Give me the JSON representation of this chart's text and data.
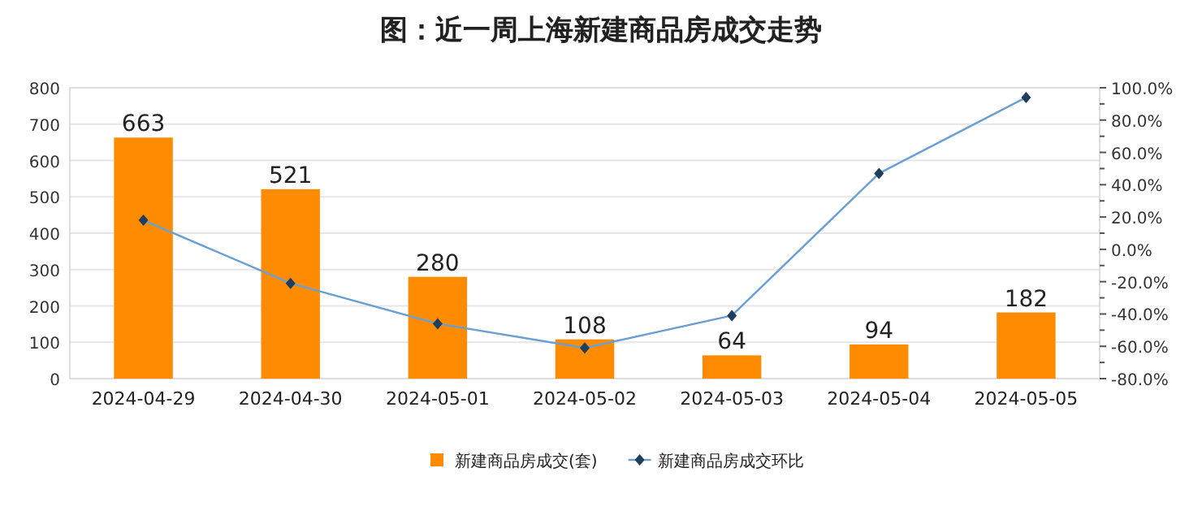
{
  "chart_data": {
    "type": "bar",
    "title": "图：近一周上海新建商品房成交走势",
    "categories": [
      "2024-04-29",
      "2024-04-30",
      "2024-05-01",
      "2024-05-02",
      "2024-05-03",
      "2024-05-04",
      "2024-05-05"
    ],
    "series": [
      {
        "name": "新建商品房成交(套)",
        "color": "#ff8c00",
        "values": [
          663,
          521,
          280,
          108,
          64,
          94,
          182
        ],
        "value_labels": [
          "663",
          "521",
          "280",
          "108",
          "64",
          "94",
          "182"
        ]
      },
      {
        "name": "新建商品房成交环比",
        "type": "line",
        "axis": "y2",
        "color": "#6a9fd4",
        "marker": "diamond",
        "values": [
          18,
          -21,
          -46,
          -61,
          -41,
          47,
          94
        ]
      }
    ],
    "ylim": [
      0,
      800
    ],
    "yticks": [
      0,
      100,
      200,
      300,
      400,
      500,
      600,
      700,
      800
    ],
    "y2lim": [
      -80,
      100
    ],
    "y2ticks": [
      {
        "value": -80,
        "label": "-80.0%"
      },
      {
        "value": -60,
        "label": "-60.0%"
      },
      {
        "value": -40,
        "label": "-40.0%"
      },
      {
        "value": -20,
        "label": "-20.0%"
      },
      {
        "value": 0,
        "label": "0.0%"
      },
      {
        "value": 20,
        "label": "20.0%"
      },
      {
        "value": 40,
        "label": "40.0%"
      },
      {
        "value": 60,
        "label": "60.0%"
      },
      {
        "value": 80,
        "label": "80.0%"
      },
      {
        "value": 100,
        "label": "100.0%"
      }
    ],
    "grid": "y",
    "legend": "bottom"
  }
}
